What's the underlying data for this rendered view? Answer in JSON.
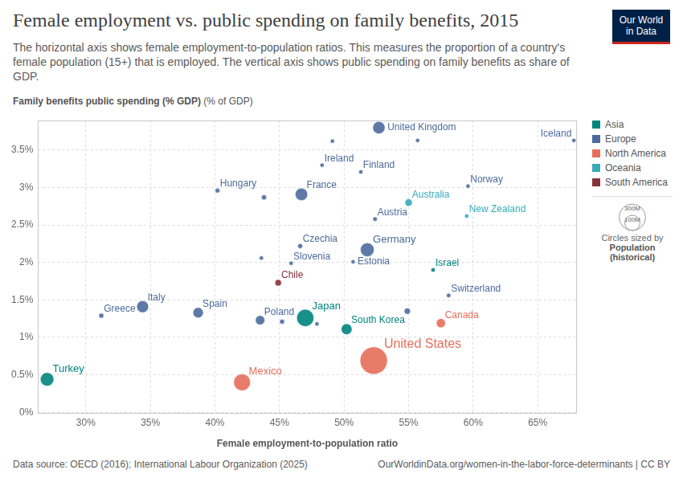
{
  "chart_data": {
    "type": "bubble",
    "title": "Female employment vs. public spending on family benefits, 2015",
    "subtitle": "The horizontal axis shows female employment-to-population ratios. This measures the proportion of a country's female population (15+) that is employed. The vertical axis shows public spending on family benefits as share of GDP.",
    "y_label": "Family benefits public spending (% GDP)",
    "y_unit": "(% of GDP)",
    "x_label": "Female employment-to-population ratio",
    "xlim": [
      26.3,
      68
    ],
    "xticks": [
      {
        "value": 30,
        "label": "30%"
      },
      {
        "value": 35,
        "label": "35%"
      },
      {
        "value": 40,
        "label": "40%"
      },
      {
        "value": 45,
        "label": "45%"
      },
      {
        "value": 50,
        "label": "50%"
      },
      {
        "value": 55,
        "label": "55%"
      },
      {
        "value": 60,
        "label": "60%"
      },
      {
        "value": 65,
        "label": "65%"
      }
    ],
    "ylim": [
      0,
      3.9
    ],
    "yticks": [
      {
        "value": 0,
        "label": "0%"
      },
      {
        "value": 0.5,
        "label": "0.5%"
      },
      {
        "value": 1,
        "label": "1%"
      },
      {
        "value": 1.5,
        "label": "1.5%"
      },
      {
        "value": 2,
        "label": "2%"
      },
      {
        "value": 2.5,
        "label": "2.5%"
      },
      {
        "value": 3,
        "label": "3%"
      },
      {
        "value": 3.5,
        "label": "3.5%"
      }
    ],
    "grid": true,
    "legend": "right",
    "series": [
      {
        "name": "Asia",
        "color": "#00847e",
        "x": [
          27.0,
          47.0,
          50.2,
          56.9
        ],
        "values": [
          0.44,
          1.26,
          1.11,
          1.9
        ],
        "population": [
          78500000,
          127100000,
          50800000,
          8100000
        ],
        "labels": [
          "Turkey",
          "Japan",
          "South Korea",
          "Israel"
        ]
      },
      {
        "name": "Europe",
        "color": "#4c6a9c",
        "x": [
          52.7,
          67.8,
          49.1,
          55.7,
          48.3,
          51.3,
          40.2,
          43.8,
          46.7,
          59.6,
          52.4,
          46.6,
          51.8,
          43.6,
          45.9,
          50.7,
          58.1,
          31.2,
          34.4,
          38.7,
          43.5,
          45.2,
          47.9,
          54.9
        ],
        "values": [
          3.8,
          3.63,
          3.62,
          3.63,
          3.3,
          3.21,
          2.96,
          2.87,
          2.91,
          3.02,
          2.58,
          2.22,
          2.17,
          2.06,
          1.99,
          2.01,
          1.56,
          1.29,
          1.41,
          1.33,
          1.23,
          1.21,
          1.18,
          1.35
        ],
        "population": [
          65100000,
          330000,
          570000,
          5700000,
          4700000,
          5500000,
          9800000,
          11300000,
          66600000,
          5200000,
          8600000,
          10500000,
          81700000,
          5400000,
          2100000,
          1300000,
          8300000,
          10800000,
          60700000,
          46400000,
          38000000,
          10400000,
          2000000,
          16900000
        ],
        "labels": [
          "United Kingdom",
          "Iceland",
          null,
          null,
          "Ireland",
          "Finland",
          "Hungary",
          null,
          "France",
          "Norway",
          "Austria",
          "Czechia",
          "Germany",
          null,
          "Slovenia",
          "Estonia",
          "Switzerland",
          "Greece",
          "Italy",
          "Spain",
          "Poland",
          null,
          null,
          null
        ]
      },
      {
        "name": "North America",
        "color": "#e56e5a",
        "x": [
          57.5,
          52.3,
          42.1
        ],
        "values": [
          1.19,
          0.69,
          0.4
        ],
        "population": [
          35900000,
          320900000,
          121900000
        ],
        "labels": [
          "Canada",
          "United States",
          "Mexico"
        ]
      },
      {
        "name": "Oceania",
        "color": "#38aaba",
        "x": [
          55.0,
          59.5
        ],
        "values": [
          2.8,
          2.62
        ],
        "population": [
          23800000,
          4600000
        ],
        "labels": [
          "Australia",
          "New Zealand"
        ]
      },
      {
        "name": "South America",
        "color": "#883039",
        "x": [
          44.9
        ],
        "values": [
          1.73
        ],
        "population": [
          17800000
        ],
        "labels": [
          "Chile"
        ]
      }
    ],
    "size_legend": {
      "values": [
        {
          "value": 300000000,
          "label": "300M"
        },
        {
          "value": 100000000,
          "label": "100M"
        }
      ],
      "title": "Circles sized by",
      "name": "Population",
      "note": "(historical)"
    },
    "source": "Data source: OECD (2016); International Labour Organization (2025)",
    "url": "OurWorldinData.org/women-in-the-labor-force-determinants | CC BY",
    "logo": [
      "Our World",
      "in Data"
    ]
  }
}
